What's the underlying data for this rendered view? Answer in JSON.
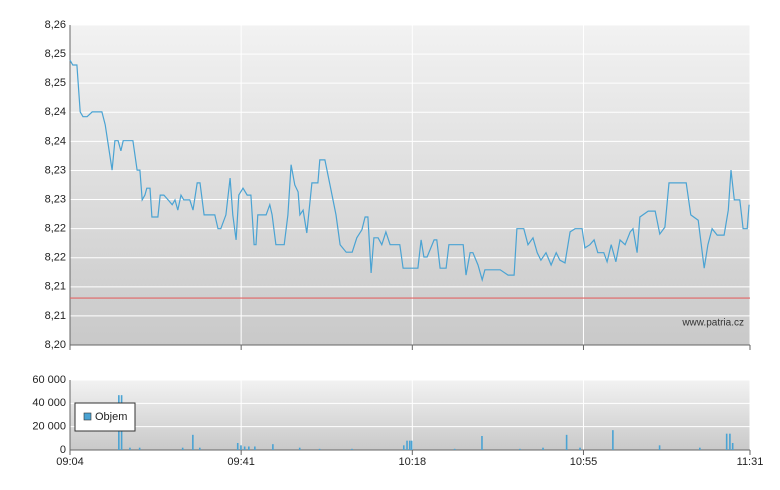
{
  "chart_data": [
    {
      "type": "line",
      "color": "#4aa3d3",
      "watermark": "www.patria.cz",
      "reference_line": {
        "value": 8.2088,
        "color": "#e06464"
      },
      "ylim": [
        8.2,
        8.26
      ],
      "yticks": [
        {
          "value": 8.2,
          "label": "8,20"
        },
        {
          "value": 8.20545,
          "label": "8,21"
        },
        {
          "value": 8.21091,
          "label": "8,21"
        },
        {
          "value": 8.21636,
          "label": "8,22"
        },
        {
          "value": 8.22182,
          "label": "8,22"
        },
        {
          "value": 8.22727,
          "label": "8,23"
        },
        {
          "value": 8.23273,
          "label": "8,23"
        },
        {
          "value": 8.23818,
          "label": "8,24"
        },
        {
          "value": 8.24364,
          "label": "8,24"
        },
        {
          "value": 8.24909,
          "label": "8,25"
        },
        {
          "value": 8.25455,
          "label": "8,25"
        },
        {
          "value": 8.26,
          "label": "8,26"
        }
      ],
      "xlim": [
        544,
        691
      ],
      "grid": true,
      "x": [
        544.0,
        544.6,
        545.5,
        546.2,
        546.8,
        547.7,
        548.8,
        550.9,
        551.6,
        553.1,
        553.7,
        554.4,
        555.0,
        555.5,
        557.6,
        558.5,
        559.1,
        559.6,
        560.2,
        560.6,
        561.3,
        561.7,
        563.0,
        563.5,
        564.3,
        565.2,
        566.1,
        566.7,
        567.3,
        568.0,
        568.6,
        569.9,
        570.6,
        571.5,
        572.1,
        573.0,
        573.8,
        575.3,
        576.0,
        576.6,
        577.7,
        578.6,
        579.2,
        579.9,
        580.5,
        581.4,
        582.3,
        583.1,
        583.8,
        584.2,
        584.6,
        586.4,
        587.2,
        587.7,
        588.5,
        590.3,
        591.1,
        591.8,
        592.6,
        593.3,
        593.7,
        594.4,
        595.2,
        596.3,
        597.6,
        598.0,
        599.1,
        600.2,
        601.5,
        602.4,
        603.7,
        605.0,
        606.0,
        607.1,
        607.8,
        608.4,
        609.1,
        609.7,
        610.6,
        611.4,
        612.3,
        613.2,
        615.3,
        616.0,
        619.2,
        619.9,
        620.5,
        621.2,
        622.7,
        623.3,
        624.0,
        625.3,
        625.9,
        629.0,
        629.6,
        630.5,
        631.1,
        632.2,
        633.1,
        633.7,
        637.0,
        638.7,
        640.0,
        640.6,
        642.1,
        643.0,
        644.1,
        645.0,
        645.8,
        646.9,
        648.0,
        649.1,
        649.9,
        651.0,
        652.1,
        653.2,
        654.7,
        655.3,
        656.4,
        657.3,
        658.1,
        659.4,
        660.1,
        661.0,
        662.0,
        662.9,
        664.0,
        665.1,
        665.7,
        666.6,
        667.2,
        669.0,
        670.5,
        671.5,
        672.6,
        673.5,
        677.2,
        678.2,
        679.8,
        681.1,
        681.9,
        682.8,
        683.9,
        685.4,
        686.3,
        686.9,
        687.6,
        688.8,
        689.5,
        690.4,
        690.8
      ],
      "values": [
        8.2534,
        8.2525,
        8.2525,
        8.2437,
        8.2428,
        8.2428,
        8.2437,
        8.2437,
        8.2413,
        8.2328,
        8.2383,
        8.2383,
        8.2364,
        8.2383,
        8.2383,
        8.2328,
        8.2328,
        8.2272,
        8.2281,
        8.2294,
        8.2294,
        8.224,
        8.224,
        8.2281,
        8.2281,
        8.2272,
        8.2263,
        8.2272,
        8.2253,
        8.2281,
        8.2272,
        8.2272,
        8.2253,
        8.2304,
        8.2304,
        8.2244,
        8.2244,
        8.2244,
        8.2218,
        8.2218,
        8.2244,
        8.2313,
        8.2244,
        8.2197,
        8.2281,
        8.2294,
        8.2281,
        8.2281,
        8.2188,
        8.2188,
        8.2244,
        8.2244,
        8.2263,
        8.2244,
        8.2188,
        8.2188,
        8.2244,
        8.2338,
        8.23,
        8.2287,
        8.2244,
        8.2253,
        8.221,
        8.2304,
        8.2304,
        8.2347,
        8.2347,
        8.23,
        8.2244,
        8.2188,
        8.2174,
        8.2174,
        8.2201,
        8.2216,
        8.224,
        8.224,
        8.2135,
        8.2201,
        8.2201,
        8.2188,
        8.2212,
        8.2188,
        8.2188,
        8.2144,
        8.2144,
        8.2197,
        8.2165,
        8.2165,
        8.2197,
        8.2197,
        8.2144,
        8.2144,
        8.2188,
        8.2188,
        8.2131,
        8.2173,
        8.2173,
        8.215,
        8.2122,
        8.2141,
        8.2141,
        8.2131,
        8.2131,
        8.2218,
        8.2218,
        8.2188,
        8.2201,
        8.2173,
        8.2159,
        8.2173,
        8.215,
        8.2173,
        8.2159,
        8.2154,
        8.2212,
        8.2218,
        8.2218,
        8.2182,
        8.2188,
        8.2197,
        8.2173,
        8.2173,
        8.2156,
        8.2188,
        8.2156,
        8.2197,
        8.2188,
        8.2212,
        8.2218,
        8.2173,
        8.224,
        8.2251,
        8.2251,
        8.2208,
        8.2221,
        8.2304,
        8.2304,
        8.2244,
        8.2234,
        8.2144,
        8.2188,
        8.2218,
        8.2206,
        8.2206,
        8.2253,
        8.2328,
        8.2272,
        8.2272,
        8.2218,
        8.2218,
        8.2263
      ]
    },
    {
      "type": "bar",
      "legend": "upper left",
      "ylim": [
        0,
        60000
      ],
      "yticks": [
        {
          "value": 0,
          "label": "0"
        },
        {
          "value": 20000,
          "label": "20 000"
        },
        {
          "value": 40000,
          "label": "40 000"
        },
        {
          "value": 60000,
          "label": "60 000"
        }
      ],
      "xlim": [
        544,
        691
      ],
      "xticks": [
        {
          "value": 544,
          "label": "09:04"
        },
        {
          "value": 581,
          "label": "09:41"
        },
        {
          "value": 618,
          "label": "10:18"
        },
        {
          "value": 655,
          "label": "10:55"
        },
        {
          "value": 691,
          "label": "11:31"
        }
      ],
      "grid": true,
      "x": [
        554.6,
        555.2,
        557.0,
        559.1,
        568.4,
        570.6,
        572.1,
        580.3,
        581.0,
        581.8,
        582.7,
        584.0,
        587.9,
        593.7,
        598.0,
        605.0,
        616.2,
        616.9,
        617.5,
        617.9,
        627.2,
        633.1,
        641.3,
        646.3,
        651.4,
        654.3,
        661.4,
        671.5,
        680.2,
        686.0,
        686.7,
        687.3
      ],
      "series": [
        {
          "name": "Objem",
          "color": "#4aa3d3",
          "values": [
            47000,
            47000,
            2000,
            2000,
            2000,
            13000,
            2000,
            6000,
            4000,
            3000,
            3000,
            3000,
            5000,
            2000,
            1000,
            1000,
            4000,
            8000,
            8000,
            8000,
            1000,
            12000,
            1000,
            2000,
            13000,
            2000,
            17000,
            4000,
            2000,
            14000,
            14000,
            6000
          ]
        }
      ]
    }
  ]
}
